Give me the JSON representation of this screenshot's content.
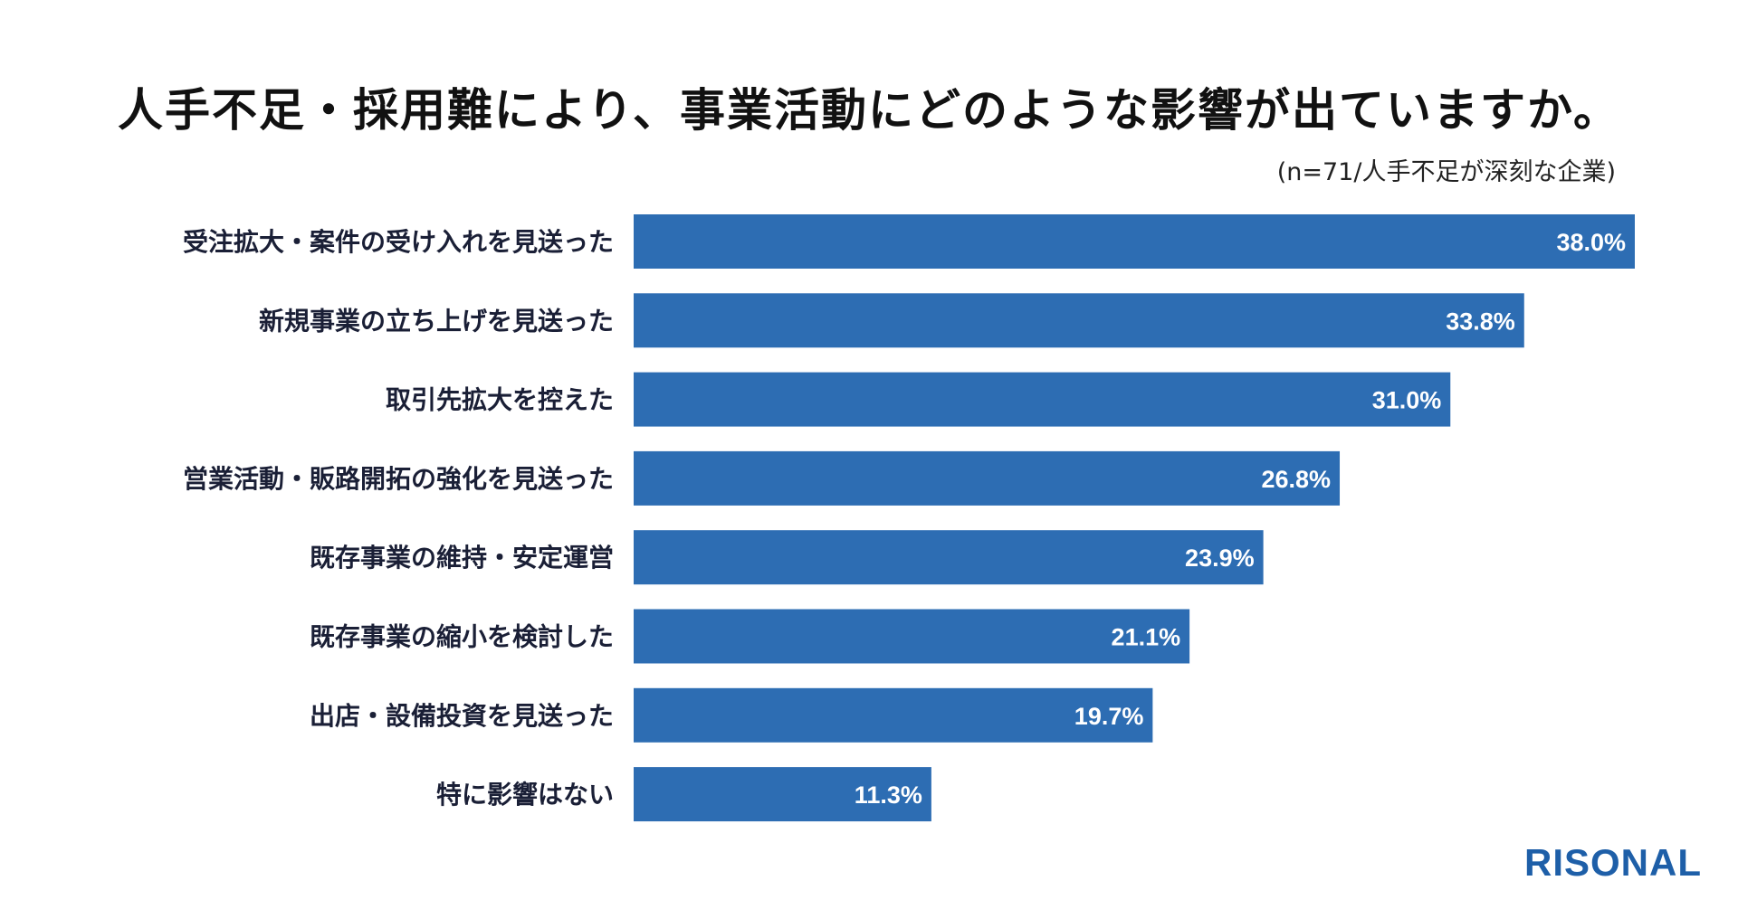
{
  "title": "人手不足・採用難により、事業活動にどのような影響が出ていますか。",
  "subtitle": "(n=71/人手不足が深刻な企業)",
  "brand": "RISONAL",
  "colors": {
    "bar": "#2d6db3",
    "brand": "#1e5fa8",
    "label": "#1a1f36",
    "value_text": "#ffffff"
  },
  "chart_data": {
    "type": "bar",
    "orientation": "horizontal",
    "title": "人手不足・採用難により、事業活動にどのような影響が出ていますか。",
    "subtitle": "(n=71/人手不足が深刻な企業)",
    "xlabel": "",
    "ylabel": "",
    "grid": false,
    "xlim": [
      0,
      38
    ],
    "categories": [
      "受注拡大・案件の受け入れを見送った",
      "新規事業の立ち上げを見送った",
      "取引先拡大を控えた",
      "営業活動・販路開拓の強化を見送った",
      "既存事業の維持・安定運営",
      "既存事業の縮小を検討した",
      "出店・設備投資を見送った",
      "特に影響はない"
    ],
    "values": [
      38.0,
      33.8,
      31.0,
      26.8,
      23.9,
      21.1,
      19.7,
      11.3
    ],
    "value_labels": [
      "38.0%",
      "33.8%",
      "31.0%",
      "26.8%",
      "23.9%",
      "21.1%",
      "19.7%",
      "11.3%"
    ]
  }
}
